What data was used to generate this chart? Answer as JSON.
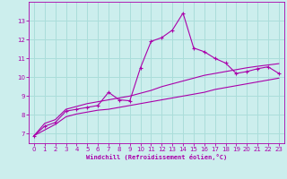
{
  "xlabel": "Windchill (Refroidissement éolien,°C)",
  "background_color": "#cceeed",
  "grid_color": "#aaddda",
  "line_color": "#aa00aa",
  "x_data": [
    0,
    1,
    2,
    3,
    4,
    5,
    6,
    7,
    8,
    9,
    10,
    11,
    12,
    13,
    14,
    15,
    16,
    17,
    18,
    19,
    20,
    21,
    22,
    23
  ],
  "y_main": [
    6.9,
    7.4,
    7.6,
    8.2,
    8.3,
    8.4,
    8.5,
    9.2,
    8.8,
    8.75,
    10.5,
    11.9,
    12.1,
    12.5,
    13.4,
    11.55,
    11.35,
    11.0,
    10.75,
    10.2,
    10.3,
    10.45,
    10.55,
    10.2
  ],
  "y_low": [
    6.9,
    7.2,
    7.5,
    7.9,
    8.05,
    8.15,
    8.25,
    8.3,
    8.4,
    8.5,
    8.6,
    8.7,
    8.8,
    8.9,
    9.0,
    9.1,
    9.2,
    9.35,
    9.45,
    9.55,
    9.65,
    9.75,
    9.85,
    9.95
  ],
  "y_high": [
    6.9,
    7.55,
    7.75,
    8.3,
    8.45,
    8.6,
    8.7,
    8.8,
    8.9,
    9.0,
    9.15,
    9.3,
    9.5,
    9.65,
    9.8,
    9.95,
    10.1,
    10.2,
    10.3,
    10.4,
    10.5,
    10.58,
    10.65,
    10.72
  ],
  "ylim": [
    6.5,
    14.0
  ],
  "yticks": [
    7,
    8,
    9,
    10,
    11,
    12,
    13
  ],
  "xticks": [
    0,
    1,
    2,
    3,
    4,
    5,
    6,
    7,
    8,
    9,
    10,
    11,
    12,
    13,
    14,
    15,
    16,
    17,
    18,
    19,
    20,
    21,
    22,
    23
  ],
  "figsize": [
    3.2,
    2.0
  ],
  "dpi": 100
}
